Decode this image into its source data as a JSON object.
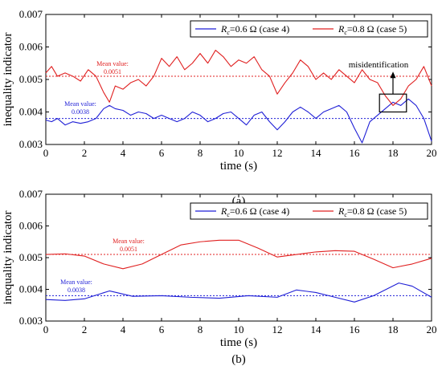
{
  "chart_data": [
    {
      "type": "line",
      "panel_label": "(a)",
      "xlabel": "time (s)",
      "ylabel": "inequality indicator",
      "xlim": [
        0,
        20
      ],
      "ylim": [
        0.003,
        0.007
      ],
      "xticks": [
        0,
        2,
        4,
        6,
        8,
        10,
        12,
        14,
        16,
        18,
        20
      ],
      "yticks": [
        "0.003",
        "0.004",
        "0.005",
        "0.006",
        "0.007"
      ],
      "legend_position": "top-right",
      "series": [
        {
          "name": "R_c=0.6 Ω (case 4)",
          "legend_symbol": "R",
          "legend_sub": "c",
          "legend_text": "=0.6 Ω  (case 4)",
          "color": "#1f1fd6",
          "x": [
            0,
            0.3,
            0.6,
            1.0,
            1.4,
            1.8,
            2.2,
            2.6,
            3.0,
            3.3,
            3.6,
            4.0,
            4.4,
            4.8,
            5.2,
            5.6,
            6.0,
            6.4,
            6.8,
            7.2,
            7.6,
            8.0,
            8.4,
            8.8,
            9.2,
            9.6,
            10.0,
            10.4,
            10.8,
            11.2,
            11.6,
            12.0,
            12.4,
            12.8,
            13.2,
            13.6,
            14.0,
            14.4,
            14.8,
            15.2,
            15.6,
            16.0,
            16.4,
            16.8,
            17.2,
            17.6,
            18.0,
            18.4,
            18.8,
            19.2,
            19.6,
            20.0
          ],
          "y": [
            0.00375,
            0.0037,
            0.0038,
            0.0036,
            0.0037,
            0.00365,
            0.0037,
            0.0038,
            0.0041,
            0.0042,
            0.0041,
            0.00405,
            0.0039,
            0.004,
            0.00395,
            0.0038,
            0.0039,
            0.0038,
            0.0037,
            0.0038,
            0.004,
            0.0039,
            0.0037,
            0.0038,
            0.00395,
            0.004,
            0.0038,
            0.0036,
            0.0039,
            0.004,
            0.0037,
            0.00345,
            0.0037,
            0.004,
            0.00415,
            0.004,
            0.0038,
            0.004,
            0.0041,
            0.0042,
            0.004,
            0.0035,
            0.00305,
            0.0037,
            0.0039,
            0.0041,
            0.0043,
            0.0042,
            0.0044,
            0.0042,
            0.0038,
            0.0031
          ]
        },
        {
          "name": "R_c=0.8 Ω (case 5)",
          "legend_symbol": "R",
          "legend_sub": "c",
          "legend_text": "=0.8 Ω  (case 5)",
          "color": "#e02020",
          "x": [
            0,
            0.3,
            0.6,
            1.0,
            1.4,
            1.8,
            2.2,
            2.6,
            3.0,
            3.3,
            3.6,
            4.0,
            4.4,
            4.8,
            5.2,
            5.6,
            6.0,
            6.4,
            6.8,
            7.2,
            7.6,
            8.0,
            8.4,
            8.8,
            9.2,
            9.6,
            10.0,
            10.4,
            10.8,
            11.2,
            11.6,
            12.0,
            12.4,
            12.8,
            13.2,
            13.6,
            14.0,
            14.4,
            14.8,
            15.2,
            15.6,
            16.0,
            16.4,
            16.8,
            17.2,
            17.6,
            18.0,
            18.4,
            18.8,
            19.2,
            19.6,
            20.0
          ],
          "y": [
            0.0052,
            0.0054,
            0.0051,
            0.0052,
            0.0051,
            0.00495,
            0.0053,
            0.0051,
            0.0046,
            0.0043,
            0.0048,
            0.0047,
            0.0049,
            0.005,
            0.0048,
            0.0051,
            0.00565,
            0.0054,
            0.0057,
            0.0053,
            0.0055,
            0.0058,
            0.0055,
            0.0059,
            0.0057,
            0.0054,
            0.0056,
            0.0055,
            0.0057,
            0.0053,
            0.0051,
            0.00455,
            0.0049,
            0.0052,
            0.0056,
            0.0054,
            0.005,
            0.0052,
            0.005,
            0.0053,
            0.0051,
            0.0049,
            0.0053,
            0.005,
            0.0049,
            0.0045,
            0.0042,
            0.0044,
            0.0048,
            0.005,
            0.0054,
            0.0048
          ]
        }
      ],
      "mean_lines": [
        {
          "label_line1": "Mean value:",
          "label_line2": "0.0051",
          "value": 0.0051,
          "color": "#e02020"
        },
        {
          "label_line1": "Mean value:",
          "label_line2": "0.0038",
          "value": 0.0038,
          "color": "#1f1fd6"
        }
      ],
      "annotation": {
        "text": "misidentification",
        "box_x": [
          17.3,
          18.7
        ],
        "box_y": [
          0.004,
          0.00455
        ]
      }
    },
    {
      "type": "line",
      "panel_label": "(b)",
      "xlabel": "time (s)",
      "ylabel": "inequality indicator",
      "xlim": [
        0,
        20
      ],
      "ylim": [
        0.003,
        0.007
      ],
      "xticks": [
        0,
        2,
        4,
        6,
        8,
        10,
        12,
        14,
        16,
        18,
        20
      ],
      "yticks": [
        "0.003",
        "0.004",
        "0.005",
        "0.006",
        "0.007"
      ],
      "legend_position": "top-right",
      "series": [
        {
          "name": "R_c=0.6 Ω (case 4)",
          "legend_symbol": "R",
          "legend_sub": "c",
          "legend_text": "=0.6 Ω  (case 4)",
          "color": "#1f1fd6",
          "x": [
            0,
            1,
            2,
            3.3,
            4.5,
            6,
            7.5,
            9,
            10.5,
            12,
            13,
            14,
            15,
            16,
            17,
            18.3,
            19,
            20
          ],
          "y": [
            0.00368,
            0.00365,
            0.0037,
            0.00395,
            0.00378,
            0.0038,
            0.00375,
            0.00372,
            0.0038,
            0.00375,
            0.00398,
            0.0039,
            0.00375,
            0.0036,
            0.0038,
            0.0042,
            0.0041,
            0.00375
          ]
        },
        {
          "name": "R_c=0.8 Ω (case 5)",
          "legend_symbol": "R",
          "legend_sub": "c",
          "legend_text": "=0.8 Ω  (case 5)",
          "color": "#e02020",
          "x": [
            0,
            1,
            2,
            3,
            4,
            5,
            6,
            7,
            8,
            9,
            10,
            11,
            12,
            13,
            14,
            15,
            16,
            17,
            18,
            19,
            20
          ],
          "y": [
            0.0051,
            0.00512,
            0.00505,
            0.0048,
            0.00465,
            0.0048,
            0.0051,
            0.0054,
            0.0055,
            0.00555,
            0.00555,
            0.0053,
            0.00502,
            0.0051,
            0.00518,
            0.00522,
            0.0052,
            0.00495,
            0.00468,
            0.0048,
            0.00498
          ]
        }
      ],
      "mean_lines": [
        {
          "label_line1": "Mean value:",
          "label_line2": "0.0051",
          "value": 0.0051,
          "color": "#e02020"
        },
        {
          "label_line1": "Mean value:",
          "label_line2": "0.0038",
          "value": 0.0038,
          "color": "#1f1fd6"
        }
      ]
    }
  ]
}
